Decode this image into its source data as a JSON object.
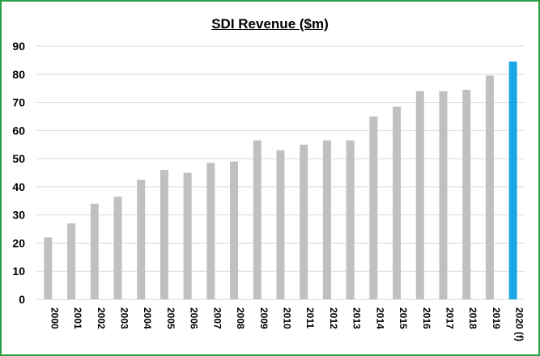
{
  "chart_data": {
    "type": "bar",
    "title": "SDI Revenue ($m)",
    "xlabel": "",
    "ylabel": "",
    "ylim": [
      0,
      90
    ],
    "yticks": [
      0,
      10,
      20,
      30,
      40,
      50,
      60,
      70,
      80,
      90
    ],
    "grid": "horizontal",
    "legend": "none",
    "categories": [
      "2000",
      "2001",
      "2002",
      "2003",
      "2004",
      "2005",
      "2006",
      "2007",
      "2008",
      "2009",
      "2010",
      "2011",
      "2012",
      "2013",
      "2014",
      "2015",
      "2016",
      "2017",
      "2018",
      "2019",
      "2020 (f)"
    ],
    "values": [
      22,
      27,
      34,
      36.5,
      42.5,
      46,
      45,
      48.5,
      49,
      56.5,
      53,
      55,
      56.5,
      56.5,
      65,
      68.5,
      74,
      74,
      74.5,
      79.5,
      84.5
    ],
    "highlight_index": 20,
    "colors": {
      "bar": "#c0c0c0",
      "highlight": "#1aa7e8",
      "grid": "#d9d9d9",
      "frame": "#2e9e44"
    }
  }
}
